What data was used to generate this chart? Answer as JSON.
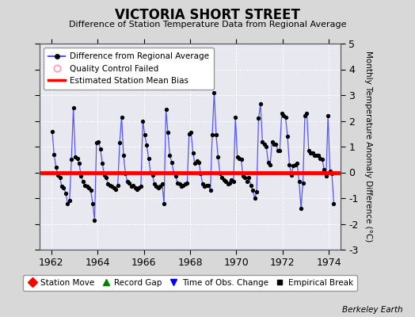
{
  "title": "VICTORIA SHORT STREET",
  "subtitle": "Difference of Station Temperature Data from Regional Average",
  "ylabel_right": "Monthly Temperature Anomaly Difference (°C)",
  "bias_value": 0.0,
  "ylim": [
    -3,
    5
  ],
  "xlim": [
    1961.5,
    1974.5
  ],
  "xticks": [
    1962,
    1964,
    1966,
    1968,
    1970,
    1972,
    1974
  ],
  "yticks": [
    -3,
    -2,
    -1,
    0,
    1,
    2,
    3,
    4,
    5
  ],
  "background_color": "#d8d8d8",
  "plot_bg_color": "#e8e8f0",
  "line_color": "#5555ff",
  "marker_color": "#000000",
  "bias_color": "#ff0000",
  "watermark": "Berkeley Earth",
  "data": [
    [
      1962.0417,
      1.6
    ],
    [
      1962.125,
      0.7
    ],
    [
      1962.2083,
      0.2
    ],
    [
      1962.2917,
      -0.1
    ],
    [
      1962.375,
      -0.2
    ],
    [
      1962.4583,
      -0.55
    ],
    [
      1962.5417,
      -0.6
    ],
    [
      1962.625,
      -0.8
    ],
    [
      1962.7083,
      -1.2
    ],
    [
      1962.7917,
      -1.1
    ],
    [
      1962.875,
      0.5
    ],
    [
      1962.9583,
      2.5
    ],
    [
      1963.0417,
      0.6
    ],
    [
      1963.125,
      0.55
    ],
    [
      1963.2083,
      0.35
    ],
    [
      1963.2917,
      -0.15
    ],
    [
      1963.375,
      -0.35
    ],
    [
      1963.4583,
      -0.5
    ],
    [
      1963.5417,
      -0.55
    ],
    [
      1963.625,
      -0.6
    ],
    [
      1963.7083,
      -0.7
    ],
    [
      1963.7917,
      -1.2
    ],
    [
      1963.875,
      -1.85
    ],
    [
      1963.9583,
      1.15
    ],
    [
      1964.0417,
      1.2
    ],
    [
      1964.125,
      0.9
    ],
    [
      1964.2083,
      0.35
    ],
    [
      1964.2917,
      -0.1
    ],
    [
      1964.375,
      -0.2
    ],
    [
      1964.4583,
      -0.45
    ],
    [
      1964.5417,
      -0.5
    ],
    [
      1964.625,
      -0.55
    ],
    [
      1964.7083,
      -0.6
    ],
    [
      1964.7917,
      -0.65
    ],
    [
      1964.875,
      -0.5
    ],
    [
      1964.9583,
      1.15
    ],
    [
      1965.0417,
      2.15
    ],
    [
      1965.125,
      0.65
    ],
    [
      1965.2083,
      -0.05
    ],
    [
      1965.2917,
      -0.35
    ],
    [
      1965.375,
      -0.4
    ],
    [
      1965.4583,
      -0.55
    ],
    [
      1965.5417,
      -0.5
    ],
    [
      1965.625,
      -0.6
    ],
    [
      1965.7083,
      -0.65
    ],
    [
      1965.7917,
      -0.6
    ],
    [
      1965.875,
      -0.55
    ],
    [
      1965.9583,
      2.0
    ],
    [
      1966.0417,
      1.45
    ],
    [
      1966.125,
      1.05
    ],
    [
      1966.2083,
      0.55
    ],
    [
      1966.2917,
      0.0
    ],
    [
      1966.375,
      -0.1
    ],
    [
      1966.4583,
      -0.45
    ],
    [
      1966.5417,
      -0.55
    ],
    [
      1966.625,
      -0.6
    ],
    [
      1966.7083,
      -0.55
    ],
    [
      1966.7917,
      -0.45
    ],
    [
      1966.875,
      -1.2
    ],
    [
      1966.9583,
      2.45
    ],
    [
      1967.0417,
      1.55
    ],
    [
      1967.125,
      0.65
    ],
    [
      1967.2083,
      0.4
    ],
    [
      1967.2917,
      0.0
    ],
    [
      1967.375,
      -0.15
    ],
    [
      1967.4583,
      -0.4
    ],
    [
      1967.5417,
      -0.45
    ],
    [
      1967.625,
      -0.55
    ],
    [
      1967.7083,
      -0.5
    ],
    [
      1967.7917,
      -0.45
    ],
    [
      1967.875,
      -0.4
    ],
    [
      1967.9583,
      1.5
    ],
    [
      1968.0417,
      1.55
    ],
    [
      1968.125,
      0.75
    ],
    [
      1968.2083,
      0.35
    ],
    [
      1968.2917,
      0.45
    ],
    [
      1968.375,
      0.4
    ],
    [
      1968.4583,
      -0.05
    ],
    [
      1968.5417,
      -0.45
    ],
    [
      1968.625,
      -0.55
    ],
    [
      1968.7083,
      -0.5
    ],
    [
      1968.7917,
      -0.5
    ],
    [
      1968.875,
      -0.7
    ],
    [
      1968.9583,
      1.45
    ],
    [
      1969.0417,
      3.1
    ],
    [
      1969.125,
      1.45
    ],
    [
      1969.2083,
      0.6
    ],
    [
      1969.2917,
      -0.05
    ],
    [
      1969.375,
      -0.2
    ],
    [
      1969.4583,
      -0.3
    ],
    [
      1969.5417,
      -0.35
    ],
    [
      1969.625,
      -0.45
    ],
    [
      1969.7083,
      -0.4
    ],
    [
      1969.7917,
      -0.3
    ],
    [
      1969.875,
      -0.35
    ],
    [
      1969.9583,
      2.15
    ],
    [
      1970.0417,
      0.6
    ],
    [
      1970.125,
      0.55
    ],
    [
      1970.2083,
      0.5
    ],
    [
      1970.2917,
      -0.15
    ],
    [
      1970.375,
      -0.2
    ],
    [
      1970.4583,
      -0.35
    ],
    [
      1970.5417,
      -0.2
    ],
    [
      1970.625,
      -0.5
    ],
    [
      1970.7083,
      -0.7
    ],
    [
      1970.7917,
      -1.0
    ],
    [
      1970.875,
      -0.75
    ],
    [
      1970.9583,
      2.1
    ],
    [
      1971.0417,
      2.65
    ],
    [
      1971.125,
      1.2
    ],
    [
      1971.2083,
      1.1
    ],
    [
      1971.2917,
      1.0
    ],
    [
      1971.375,
      0.4
    ],
    [
      1971.4583,
      0.3
    ],
    [
      1971.5417,
      1.2
    ],
    [
      1971.625,
      1.1
    ],
    [
      1971.7083,
      1.1
    ],
    [
      1971.7917,
      0.85
    ],
    [
      1971.875,
      0.85
    ],
    [
      1971.9583,
      2.3
    ],
    [
      1972.0417,
      2.2
    ],
    [
      1972.125,
      2.15
    ],
    [
      1972.2083,
      1.4
    ],
    [
      1972.2917,
      0.3
    ],
    [
      1972.375,
      -0.1
    ],
    [
      1972.4583,
      0.25
    ],
    [
      1972.5417,
      0.3
    ],
    [
      1972.625,
      0.35
    ],
    [
      1972.7083,
      -0.35
    ],
    [
      1972.7917,
      -1.4
    ],
    [
      1972.875,
      -0.4
    ],
    [
      1972.9583,
      2.2
    ],
    [
      1973.0417,
      2.3
    ],
    [
      1973.125,
      0.85
    ],
    [
      1973.2083,
      0.75
    ],
    [
      1973.2917,
      0.75
    ],
    [
      1973.375,
      0.65
    ],
    [
      1973.4583,
      0.65
    ],
    [
      1973.5417,
      0.65
    ],
    [
      1973.625,
      0.55
    ],
    [
      1973.7083,
      0.5
    ],
    [
      1973.7917,
      0.1
    ],
    [
      1973.875,
      -0.15
    ],
    [
      1973.9583,
      2.2
    ],
    [
      1974.0417,
      0.05
    ],
    [
      1974.125,
      -0.05
    ],
    [
      1974.2083,
      -1.2
    ]
  ]
}
